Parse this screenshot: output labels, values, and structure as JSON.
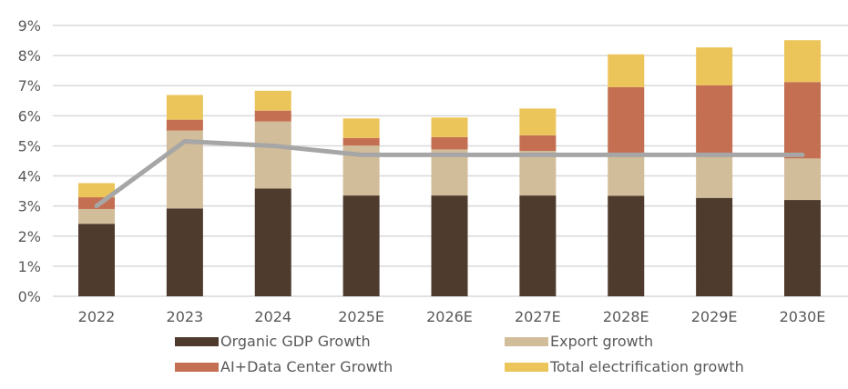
{
  "chart_data": {
    "type": "bar",
    "stacked": true,
    "title": "",
    "xlabel": "",
    "ylabel": "",
    "categories": [
      "2022",
      "2023",
      "2024",
      "2025E",
      "2026E",
      "2027E",
      "2028E",
      "2029E",
      "2030E"
    ],
    "ylim": [
      0,
      9
    ],
    "yticks": [
      0,
      1,
      2,
      3,
      4,
      5,
      6,
      7,
      8,
      9
    ],
    "ytick_labels": [
      "0%",
      "1%",
      "2%",
      "3%",
      "4%",
      "5%",
      "6%",
      "7%",
      "8%",
      "9%"
    ],
    "grid": true,
    "series": [
      {
        "name": "Organic GDP Growth",
        "color": "#4e3b2e",
        "values": [
          2.41,
          2.92,
          3.58,
          3.35,
          3.35,
          3.35,
          3.34,
          3.27,
          3.2
        ]
      },
      {
        "name": "Export growth",
        "color": "#d1bd9a",
        "values": [
          0.49,
          2.59,
          2.23,
          1.66,
          1.53,
          1.48,
          1.41,
          1.48,
          1.38
        ]
      },
      {
        "name": "AI+Data Center Growth",
        "color": "#c46f52",
        "values": [
          0.39,
          0.36,
          0.36,
          0.25,
          0.41,
          0.52,
          2.2,
          2.26,
          2.54
        ]
      },
      {
        "name": "Total electrification growth",
        "color": "#ecc55a",
        "values": [
          0.47,
          0.82,
          0.66,
          0.65,
          0.65,
          0.89,
          1.09,
          1.26,
          1.39
        ]
      }
    ],
    "line_series": {
      "name": "",
      "color": "#a6a6a6",
      "values": [
        3.0,
        5.15,
        5.0,
        4.7,
        4.7,
        4.7,
        4.7,
        4.7,
        4.7
      ]
    },
    "legend": {
      "placement": "bottom",
      "entries": [
        "Organic GDP Growth",
        "Export growth",
        "AI+Data Center Growth",
        "Total electrification growth"
      ]
    }
  }
}
